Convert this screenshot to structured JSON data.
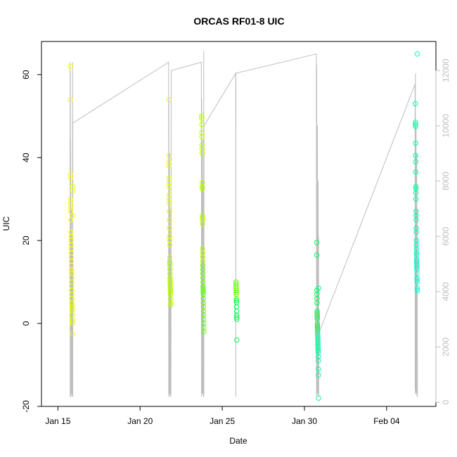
{
  "chart_data": {
    "type": "scatter",
    "title": "ORCAS RF01-8 UIC",
    "xlabel": "Date",
    "ylabel": "UIC",
    "xlim": [
      "2016-01-14",
      "2016-02-07"
    ],
    "ylim": [
      -20,
      68
    ],
    "y2lim": [
      -150,
      13050
    ],
    "x_ticks": [
      {
        "date": "2016-01-15",
        "label": "Jan 15"
      },
      {
        "date": "2016-01-20",
        "label": "Jan 20"
      },
      {
        "date": "2016-01-25",
        "label": "Jan 25"
      },
      {
        "date": "2016-01-30",
        "label": "Jan 30"
      },
      {
        "date": "2016-02-04",
        "label": "Feb 04"
      }
    ],
    "y_ticks": [
      -20,
      0,
      20,
      40,
      60
    ],
    "y2_ticks": [
      0,
      2000,
      4000,
      6000,
      8000,
      10000,
      12000
    ],
    "legend": "none",
    "grid": false,
    "colors": {
      "flight_gradient": [
        "#ffff00",
        "#e6ff00",
        "#b8ff00",
        "#66ff00",
        "#00ff55",
        "#00ffa0",
        "#00ffcc"
      ],
      "altitude_line": "#bebebe",
      "axis": "#000000",
      "right_axis": "#bebebe"
    },
    "series": [
      {
        "points": [
          [
            "2016-01-15 18:00",
            62
          ],
          [
            "2016-01-15 18:10",
            54
          ],
          [
            "2016-01-15 18:20",
            36
          ],
          [
            "2016-01-15 18:25",
            35
          ],
          [
            "2016-01-15 18:30",
            30
          ],
          [
            "2016-01-15 18:35",
            29
          ],
          [
            "2016-01-15 18:40",
            28
          ],
          [
            "2016-01-15 18:45",
            27
          ],
          [
            "2016-01-15 18:50",
            25
          ],
          [
            "2016-01-15 19:00",
            22
          ],
          [
            "2016-01-15 19:05",
            21
          ],
          [
            "2016-01-15 19:10",
            20
          ],
          [
            "2016-01-15 19:15",
            19
          ],
          [
            "2016-01-15 19:20",
            18
          ],
          [
            "2016-01-15 19:25",
            17
          ],
          [
            "2016-01-15 19:30",
            16
          ],
          [
            "2016-01-15 19:35",
            15
          ],
          [
            "2016-01-15 19:40",
            14
          ],
          [
            "2016-01-15 19:45",
            13
          ],
          [
            "2016-01-15 19:50",
            12.5
          ],
          [
            "2016-01-15 19:55",
            12
          ],
          [
            "2016-01-15 20:00",
            11
          ],
          [
            "2016-01-15 20:05",
            10
          ],
          [
            "2016-01-15 20:10",
            9
          ],
          [
            "2016-01-15 20:15",
            8
          ],
          [
            "2016-01-15 20:20",
            7
          ],
          [
            "2016-01-15 20:25",
            6
          ],
          [
            "2016-01-15 20:30",
            5
          ],
          [
            "2016-01-15 20:35",
            4.5
          ],
          [
            "2016-01-15 20:40",
            4
          ],
          [
            "2016-01-15 20:45",
            3.5
          ],
          [
            "2016-01-15 20:50",
            3
          ],
          [
            "2016-01-15 20:55",
            2
          ],
          [
            "2016-01-15 21:00",
            1
          ],
          [
            "2016-01-15 21:05",
            0.5
          ],
          [
            "2016-01-15 21:10",
            0
          ],
          [
            "2016-01-15 21:15",
            -2.5
          ],
          [
            "2016-01-15 21:20",
            33
          ],
          [
            "2016-01-15 21:25",
            32
          ],
          [
            "2016-01-15 21:30",
            26
          ]
        ]
      },
      {
        "points": [
          [
            "2016-01-21 18:00",
            54
          ],
          [
            "2016-01-21 18:05",
            40.5
          ],
          [
            "2016-01-21 18:10",
            39
          ],
          [
            "2016-01-21 18:15",
            38
          ],
          [
            "2016-01-21 18:20",
            35
          ],
          [
            "2016-01-21 18:25",
            34
          ],
          [
            "2016-01-21 18:30",
            33
          ],
          [
            "2016-01-21 18:35",
            31
          ],
          [
            "2016-01-21 18:40",
            30
          ],
          [
            "2016-01-21 18:45",
            29
          ],
          [
            "2016-01-21 18:50",
            27
          ],
          [
            "2016-01-21 18:55",
            25
          ],
          [
            "2016-01-21 19:00",
            23
          ],
          [
            "2016-01-21 19:05",
            21
          ],
          [
            "2016-01-21 19:10",
            20
          ],
          [
            "2016-01-21 19:15",
            19
          ],
          [
            "2016-01-21 19:20",
            16
          ],
          [
            "2016-01-21 19:25",
            15
          ],
          [
            "2016-01-21 19:30",
            14.5
          ],
          [
            "2016-01-21 19:35",
            14
          ],
          [
            "2016-01-21 19:40",
            13
          ],
          [
            "2016-01-21 19:45",
            12
          ],
          [
            "2016-01-21 19:50",
            11
          ],
          [
            "2016-01-21 19:55",
            10.5
          ],
          [
            "2016-01-21 20:00",
            10
          ],
          [
            "2016-01-21 20:05",
            9.5
          ],
          [
            "2016-01-21 20:10",
            9
          ],
          [
            "2016-01-21 20:15",
            8.5
          ],
          [
            "2016-01-21 20:20",
            8
          ],
          [
            "2016-01-21 20:25",
            7.5
          ],
          [
            "2016-01-21 20:30",
            7
          ],
          [
            "2016-01-21 20:35",
            6
          ],
          [
            "2016-01-21 20:40",
            5
          ],
          [
            "2016-01-21 20:45",
            4.5
          ]
        ]
      },
      {
        "points": [
          [
            "2016-01-23 18:00",
            50
          ],
          [
            "2016-01-23 18:05",
            49.5
          ],
          [
            "2016-01-23 18:10",
            48
          ],
          [
            "2016-01-23 18:15",
            46
          ],
          [
            "2016-01-23 18:20",
            45
          ],
          [
            "2016-01-23 18:25",
            43
          ],
          [
            "2016-01-23 18:30",
            42
          ],
          [
            "2016-01-23 18:35",
            41
          ],
          [
            "2016-01-23 18:40",
            34
          ],
          [
            "2016-01-23 18:45",
            33
          ],
          [
            "2016-01-23 18:50",
            32.5
          ],
          [
            "2016-01-23 18:55",
            26
          ],
          [
            "2016-01-23 19:00",
            25.5
          ],
          [
            "2016-01-23 19:05",
            25
          ],
          [
            "2016-01-23 19:10",
            24
          ],
          [
            "2016-01-23 19:15",
            18
          ],
          [
            "2016-01-23 19:20",
            17
          ],
          [
            "2016-01-23 19:25",
            16
          ],
          [
            "2016-01-23 19:30",
            15
          ],
          [
            "2016-01-23 19:35",
            14
          ],
          [
            "2016-01-23 19:40",
            13
          ],
          [
            "2016-01-23 19:45",
            12
          ],
          [
            "2016-01-23 19:50",
            11
          ],
          [
            "2016-01-23 19:55",
            10
          ],
          [
            "2016-01-23 20:00",
            9
          ],
          [
            "2016-01-23 20:05",
            8.5
          ],
          [
            "2016-01-23 20:10",
            8
          ],
          [
            "2016-01-23 20:15",
            7.5
          ],
          [
            "2016-01-23 20:20",
            7
          ],
          [
            "2016-01-23 20:25",
            6
          ],
          [
            "2016-01-23 20:30",
            5
          ],
          [
            "2016-01-23 20:35",
            4
          ],
          [
            "2016-01-23 20:40",
            3
          ],
          [
            "2016-01-23 20:45",
            2
          ],
          [
            "2016-01-23 20:50",
            1
          ],
          [
            "2016-01-23 20:55",
            0
          ],
          [
            "2016-01-23 21:00",
            -1
          ],
          [
            "2016-01-23 21:05",
            -2
          ]
        ]
      },
      {
        "points": [
          [
            "2016-01-25 20:00",
            10
          ],
          [
            "2016-01-25 20:05",
            9.5
          ],
          [
            "2016-01-25 20:10",
            9
          ],
          [
            "2016-01-25 20:15",
            8.5
          ],
          [
            "2016-01-25 20:20",
            8
          ],
          [
            "2016-01-25 20:25",
            7.5
          ],
          [
            "2016-01-25 20:30",
            7
          ],
          [
            "2016-01-25 20:35",
            6
          ],
          [
            "2016-01-25 20:40",
            5.5
          ],
          [
            "2016-01-25 20:45",
            5
          ],
          [
            "2016-01-25 20:50",
            4
          ],
          [
            "2016-01-25 20:55",
            3
          ],
          [
            "2016-01-25 21:00",
            2
          ],
          [
            "2016-01-25 21:05",
            1.5
          ],
          [
            "2016-01-25 21:10",
            1
          ],
          [
            "2016-01-25 21:15",
            -4
          ]
        ]
      },
      {
        "points": [
          [
            "2016-01-30 18:00",
            19.5
          ],
          [
            "2016-01-30 18:05",
            16.5
          ],
          [
            "2016-01-30 18:10",
            8
          ],
          [
            "2016-01-30 18:15",
            7
          ],
          [
            "2016-01-30 18:20",
            6
          ],
          [
            "2016-01-30 18:25",
            5
          ],
          [
            "2016-01-30 18:30",
            3
          ],
          [
            "2016-01-30 18:35",
            2.5
          ],
          [
            "2016-01-30 18:40",
            2
          ],
          [
            "2016-01-30 18:45",
            1.5
          ],
          [
            "2016-01-30 18:50",
            1
          ],
          [
            "2016-01-30 18:55",
            0
          ],
          [
            "2016-01-30 19:00",
            -0.5
          ],
          [
            "2016-01-30 19:05",
            -1
          ],
          [
            "2016-01-30 19:10",
            -1.5
          ],
          [
            "2016-01-30 19:15",
            -2
          ],
          [
            "2016-01-30 19:20",
            -2.5
          ],
          [
            "2016-01-30 19:25",
            -3
          ],
          [
            "2016-01-30 19:30",
            -3.5
          ],
          [
            "2016-01-30 19:35",
            -4
          ],
          [
            "2016-01-30 19:40",
            -4.5
          ],
          [
            "2016-01-30 19:45",
            -5
          ],
          [
            "2016-01-30 19:50",
            -5.5
          ],
          [
            "2016-01-30 19:55",
            -6
          ],
          [
            "2016-01-30 20:00",
            -6.5
          ],
          [
            "2016-01-30 20:05",
            -7
          ],
          [
            "2016-01-30 20:10",
            -8
          ],
          [
            "2016-01-30 20:15",
            -9
          ],
          [
            "2016-01-30 20:20",
            -11
          ],
          [
            "2016-01-30 20:25",
            -12.5
          ],
          [
            "2016-01-30 20:30",
            -18
          ],
          [
            "2016-01-30 20:35",
            8.5
          ]
        ]
      },
      {
        "points": [
          [
            "2016-02-05 18:00",
            53
          ],
          [
            "2016-02-05 18:05",
            48.5
          ],
          [
            "2016-02-05 18:10",
            48
          ],
          [
            "2016-02-05 18:15",
            47.5
          ],
          [
            "2016-02-05 18:20",
            43.5
          ],
          [
            "2016-02-05 18:25",
            40.5
          ],
          [
            "2016-02-05 18:30",
            39
          ],
          [
            "2016-02-05 18:35",
            36.5
          ],
          [
            "2016-02-05 18:40",
            33
          ],
          [
            "2016-02-05 18:45",
            32.5
          ],
          [
            "2016-02-05 18:50",
            31.5
          ],
          [
            "2016-02-05 18:55",
            30
          ],
          [
            "2016-02-05 19:00",
            27
          ],
          [
            "2016-02-05 19:05",
            26
          ],
          [
            "2016-02-05 19:10",
            25
          ],
          [
            "2016-02-05 19:15",
            23
          ],
          [
            "2016-02-05 19:20",
            22
          ],
          [
            "2016-02-05 19:25",
            20
          ],
          [
            "2016-02-05 19:30",
            19
          ],
          [
            "2016-02-05 19:35",
            18
          ],
          [
            "2016-02-05 19:40",
            17
          ],
          [
            "2016-02-05 19:45",
            16.5
          ],
          [
            "2016-02-05 19:50",
            15.5
          ],
          [
            "2016-02-05 19:55",
            15
          ],
          [
            "2016-02-05 20:00",
            14.5
          ],
          [
            "2016-02-05 20:05",
            14
          ],
          [
            "2016-02-05 20:10",
            13.5
          ],
          [
            "2016-02-05 20:15",
            13
          ],
          [
            "2016-02-05 20:20",
            12
          ],
          [
            "2016-02-05 20:25",
            11
          ],
          [
            "2016-02-05 20:30",
            10.5
          ],
          [
            "2016-02-05 20:35",
            10
          ],
          [
            "2016-02-05 20:40",
            8.5
          ],
          [
            "2016-02-05 20:45",
            8
          ],
          [
            "2016-02-05 20:50",
            65
          ]
        ]
      }
    ],
    "altitude_line": [
      [
        "2016-01-15 17:50",
        12300
      ],
      [
        "2016-01-15 17:55",
        200
      ],
      [
        "2016-01-15 18:00",
        11900
      ],
      [
        "2016-01-15 18:05",
        300
      ],
      [
        "2016-01-15 18:10",
        12000
      ],
      [
        "2016-01-15 18:15",
        400
      ],
      [
        "2016-01-15 18:20",
        11000
      ],
      [
        "2016-01-15 18:25",
        300
      ],
      [
        "2016-01-15 18:30",
        9500
      ],
      [
        "2016-01-15 18:35",
        200
      ],
      [
        "2016-01-15 18:40",
        9000
      ],
      [
        "2016-01-15 18:45",
        300
      ],
      [
        "2016-01-15 18:50",
        8000
      ],
      [
        "2016-01-15 19:00",
        200
      ],
      [
        "2016-01-15 19:30",
        7000
      ],
      [
        "2016-01-15 20:00",
        300
      ],
      [
        "2016-01-15 20:30",
        6000
      ],
      [
        "2016-01-15 21:00",
        200
      ],
      [
        "2016-01-15 21:30",
        12300
      ],
      [
        "2016-01-15 21:40",
        200
      ],
      [
        "2016-01-15 21:50",
        10100
      ],
      [
        "2016-01-21 17:40",
        12300
      ],
      [
        "2016-01-21 17:45",
        200
      ],
      [
        "2016-01-21 18:00",
        11000
      ],
      [
        "2016-01-21 18:30",
        300
      ],
      [
        "2016-01-21 19:00",
        9000
      ],
      [
        "2016-01-21 19:30",
        200
      ],
      [
        "2016-01-21 20:00",
        7000
      ],
      [
        "2016-01-21 20:30",
        300
      ],
      [
        "2016-01-21 20:50",
        5000
      ],
      [
        "2016-01-21 21:10",
        200
      ],
      [
        "2016-01-21 21:30",
        12000
      ],
      [
        "2016-01-23 17:30",
        12300
      ],
      [
        "2016-01-23 17:40",
        200
      ],
      [
        "2016-01-23 18:00",
        11000
      ],
      [
        "2016-01-23 18:30",
        300
      ],
      [
        "2016-01-23 19:00",
        9500
      ],
      [
        "2016-01-23 19:30",
        300
      ],
      [
        "2016-01-23 20:00",
        8000
      ],
      [
        "2016-01-23 20:30",
        200
      ],
      [
        "2016-01-23 21:00",
        12700
      ],
      [
        "2016-01-23 21:10",
        200
      ],
      [
        "2016-01-23 21:20",
        10000
      ],
      [
        "2016-01-25 19:40",
        11900
      ],
      [
        "2016-01-25 19:50",
        200
      ],
      [
        "2016-01-25 20:00",
        11900
      ],
      [
        "2016-01-30 17:30",
        12600
      ],
      [
        "2016-01-30 17:40",
        200
      ],
      [
        "2016-01-30 18:00",
        12200
      ],
      [
        "2016-01-30 18:30",
        300
      ],
      [
        "2016-01-30 19:00",
        10000
      ],
      [
        "2016-01-30 19:30",
        300
      ],
      [
        "2016-01-30 20:00",
        8000
      ],
      [
        "2016-01-30 20:30",
        200
      ],
      [
        "2016-01-30 20:40",
        6000
      ],
      [
        "2016-01-30 20:50",
        200
      ],
      [
        "2016-01-30 21:00",
        2500
      ],
      [
        "2016-02-05 17:30",
        11500
      ],
      [
        "2016-02-05 17:40",
        300
      ],
      [
        "2016-02-05 18:00",
        11900
      ],
      [
        "2016-02-05 18:30",
        400
      ],
      [
        "2016-02-05 19:00",
        10000
      ],
      [
        "2016-02-05 19:30",
        300
      ],
      [
        "2016-02-05 20:00",
        9000
      ],
      [
        "2016-02-05 20:30",
        200
      ],
      [
        "2016-02-05 20:50",
        7000
      ],
      [
        "2016-02-05 21:00",
        200
      ]
    ]
  }
}
